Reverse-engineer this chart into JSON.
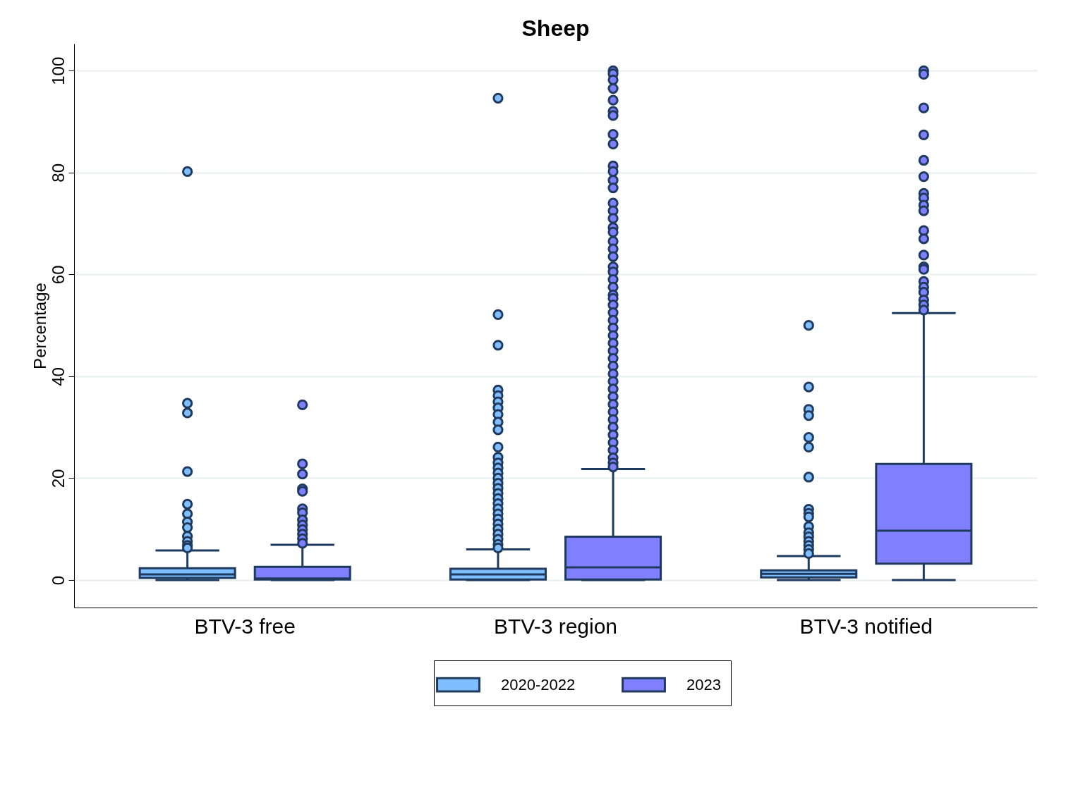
{
  "chart_data": {
    "type": "box",
    "title": "Sheep",
    "ylabel": "Percentage",
    "categories": [
      "BTV-3 free",
      "BTV-3 region",
      "BTV-3 notified"
    ],
    "ylim": [
      -5.4,
      105.3
    ],
    "yticks": [
      0,
      20,
      40,
      60,
      80,
      100
    ],
    "grid": "y",
    "legend": "bottom",
    "marker": "circle",
    "series": [
      {
        "name": "2020-2022",
        "color": "#80bfff",
        "boxes": [
          {
            "low": 0,
            "q1": 0.4,
            "median": 1.1,
            "q3": 2.3,
            "high": 5.8,
            "outliers": [
              80.2,
              34.7,
              32.8,
              21.3,
              14.9,
              13.0,
              11.4,
              10.3,
              8.6,
              7.6,
              6.8,
              6.3
            ]
          },
          {
            "low": 0,
            "q1": 0.1,
            "median": 1.1,
            "q3": 2.2,
            "high": 6.0,
            "outliers": [
              94.6,
              52.1,
              46.1,
              37.3,
              36.2,
              35.0,
              33.8,
              32.5,
              31.0,
              29.5,
              26.1,
              24.1,
              23.0,
              22.0,
              21.0,
              20.0,
              19.0,
              18.0,
              17.0,
              16.0,
              15.0,
              14.0,
              13.0,
              12.0,
              11.0,
              10.0,
              9.0,
              8.0,
              7.0,
              6.3
            ]
          },
          {
            "low": 0,
            "q1": 0.5,
            "median": 1.2,
            "q3": 1.9,
            "high": 4.7,
            "outliers": [
              50.0,
              37.9,
              33.5,
              32.3,
              28.0,
              26.1,
              20.2,
              13.9,
              13.1,
              12.4,
              10.5,
              9.3,
              8.5,
              7.6,
              6.8,
              6.0,
              5.2
            ]
          }
        ]
      },
      {
        "name": "2023",
        "color": "#8080ff",
        "boxes": [
          {
            "low": 0,
            "q1": 0.1,
            "median": 0.3,
            "q3": 2.6,
            "high": 6.9,
            "outliers": [
              34.4,
              22.8,
              20.8,
              17.9,
              17.4,
              14.0,
              13.2,
              11.8,
              10.8,
              9.9,
              9.0,
              8.1,
              7.2
            ]
          },
          {
            "low": 0,
            "q1": 0.1,
            "median": 2.5,
            "q3": 8.5,
            "high": 21.8,
            "outliers": [
              100,
              99.4,
              98.2,
              96.5,
              94.2,
              92.0,
              91.2,
              87.5,
              85.6,
              81.3,
              80.2,
              78.5,
              77.0,
              74.0,
              72.5,
              71.0,
              69.2,
              68.3,
              66.5,
              65.0,
              63.5,
              61.5,
              60.5,
              59.0,
              57.5,
              56.0,
              55.3,
              54.0,
              52.5,
              51.0,
              49.5,
              48.0,
              46.5,
              45.0,
              43.5,
              42.0,
              40.5,
              39.0,
              37.5,
              36.0,
              34.5,
              33.0,
              31.5,
              30.0,
              28.5,
              27.0,
              25.5,
              24.0,
              23.0,
              22.2
            ]
          },
          {
            "low": 0,
            "q1": 3.2,
            "median": 9.7,
            "q3": 22.8,
            "high": 52.4,
            "outliers": [
              100,
              99.3,
              92.7,
              87.4,
              82.4,
              79.2,
              75.9,
              75.0,
              73.6,
              72.5,
              68.6,
              67.0,
              63.8,
              61.5,
              61.0,
              58.6,
              57.5,
              56.5,
              55.0,
              54.0,
              53.0
            ]
          }
        ]
      }
    ]
  }
}
